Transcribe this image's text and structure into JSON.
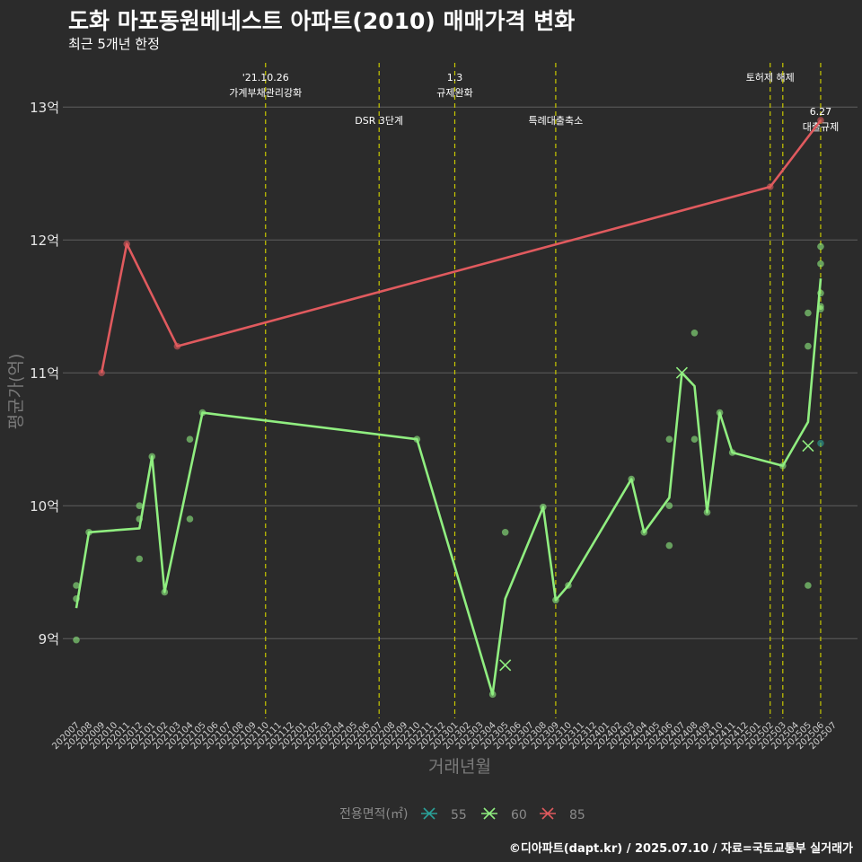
{
  "header": {
    "title": "도화 마포동원베네스트 아파트(2010) 매매가격 변화",
    "subtitle": "최근 5개년 한정",
    "caption": "©디아파트(dapt.kr) / 2025.07.10 / 자료=국토교통부 실거래가"
  },
  "colors": {
    "background": "#2b2b2b",
    "grid": "#5e5e5e",
    "event_line": "#c8c800",
    "s55": "#2aa198",
    "s60": "#90ee80",
    "s85": "#e05a5e"
  },
  "chart_data": {
    "type": "line",
    "xlabel": "거래년월",
    "ylabel": "평균가(억)",
    "ylim": [
      8.4,
      13.4
    ],
    "yticks": [
      9,
      10,
      11,
      12,
      13
    ],
    "ytick_labels": [
      "9억",
      "10억",
      "11억",
      "12억",
      "13억"
    ],
    "x_categories": [
      "202007",
      "202008",
      "202009",
      "202010",
      "202011",
      "202012",
      "202101",
      "202102",
      "202103",
      "202104",
      "202105",
      "202106",
      "202107",
      "202108",
      "202109",
      "202110",
      "202111",
      "202112",
      "202201",
      "202202",
      "202203",
      "202204",
      "202205",
      "202206",
      "202207",
      "202208",
      "202209",
      "202210",
      "202211",
      "202212",
      "202301",
      "202302",
      "202303",
      "202304",
      "202305",
      "202306",
      "202307",
      "202308",
      "202309",
      "202310",
      "202311",
      "202312",
      "202401",
      "202402",
      "202403",
      "202404",
      "202405",
      "202406",
      "202407",
      "202408",
      "202409",
      "202410",
      "202411",
      "202412",
      "202501",
      "202502",
      "202503",
      "202504",
      "202505",
      "202506",
      "202507"
    ],
    "grid": true,
    "legend": {
      "title": "전용면적(㎡)",
      "position": "bottom",
      "items": [
        "55",
        "60",
        "85"
      ]
    },
    "series": [
      {
        "name": "60",
        "color": "#90ee80",
        "line": [
          [
            0,
            9.23
          ],
          [
            1,
            9.8
          ],
          [
            5,
            9.83
          ],
          [
            6,
            10.37
          ],
          [
            7,
            9.35
          ],
          [
            10,
            10.7
          ],
          [
            27,
            10.5
          ],
          [
            33,
            8.58
          ],
          [
            34,
            9.3
          ],
          [
            37,
            9.99
          ],
          [
            38,
            9.29
          ],
          [
            39,
            9.4
          ],
          [
            44,
            10.2
          ],
          [
            45,
            9.8
          ],
          [
            47,
            10.06
          ],
          [
            48,
            11.0
          ],
          [
            49,
            10.9
          ],
          [
            50,
            9.95
          ],
          [
            51,
            10.7
          ],
          [
            52,
            10.4
          ],
          [
            56,
            10.3
          ],
          [
            58,
            10.63
          ],
          [
            59,
            11.71
          ]
        ],
        "points": [
          [
            0,
            9.4
          ],
          [
            0,
            9.3
          ],
          [
            0,
            8.99
          ],
          [
            1,
            9.8
          ],
          [
            5,
            10.0
          ],
          [
            5,
            9.9
          ],
          [
            5,
            9.6
          ],
          [
            6,
            10.37
          ],
          [
            7,
            9.35
          ],
          [
            9,
            10.5
          ],
          [
            9,
            9.9
          ],
          [
            10,
            10.7
          ],
          [
            27,
            10.5
          ],
          [
            33,
            8.58
          ],
          [
            34,
            9.8
          ],
          [
            37,
            9.99
          ],
          [
            38,
            9.29
          ],
          [
            39,
            9.4
          ],
          [
            44,
            10.2
          ],
          [
            45,
            9.8
          ],
          [
            47,
            10.5
          ],
          [
            47,
            10.0
          ],
          [
            47,
            9.7
          ],
          [
            49,
            11.3
          ],
          [
            49,
            10.5
          ],
          [
            50,
            9.95
          ],
          [
            51,
            10.7
          ],
          [
            52,
            10.4
          ],
          [
            56,
            10.3
          ],
          [
            58,
            11.45
          ],
          [
            58,
            11.2
          ],
          [
            58,
            9.4
          ],
          [
            59,
            11.95
          ],
          [
            59,
            11.82
          ],
          [
            59,
            11.6
          ],
          [
            59,
            11.5
          ],
          [
            59,
            11.48
          ]
        ],
        "cross_marks": [
          [
            34,
            8.8
          ],
          [
            48,
            11.0
          ],
          [
            58,
            10.45
          ]
        ]
      },
      {
        "name": "85",
        "color": "#e05a5e",
        "line": [
          [
            2,
            11.0
          ],
          [
            4,
            11.97
          ],
          [
            8,
            11.2
          ],
          [
            55,
            12.4
          ],
          [
            59,
            12.9
          ]
        ],
        "points": [
          [
            2,
            11.0
          ],
          [
            4,
            11.97
          ],
          [
            8,
            11.2
          ],
          [
            55,
            12.4
          ],
          [
            59,
            12.9
          ]
        ],
        "cross_marks": []
      },
      {
        "name": "55",
        "color": "#2aa198",
        "line": [],
        "points": [
          [
            59,
            10.47
          ]
        ],
        "cross_marks": []
      }
    ],
    "events": [
      {
        "x": 15,
        "lines": [
          "'21.10.26",
          "가계부채관리강화"
        ],
        "row": 0
      },
      {
        "x": 24,
        "lines": [
          "DSR 3단계"
        ],
        "row": 1
      },
      {
        "x": 30,
        "lines": [
          "1.3",
          "규제완화"
        ],
        "row": 0
      },
      {
        "x": 38,
        "lines": [
          "특례대출축소"
        ],
        "row": 1
      },
      {
        "x": 55,
        "lines": [
          "토허제 해제"
        ],
        "row": 0
      },
      {
        "x": 56,
        "lines": [],
        "row": 0
      },
      {
        "x": 59,
        "lines": [
          "6.27",
          "대출규제"
        ],
        "row": 2
      }
    ]
  }
}
